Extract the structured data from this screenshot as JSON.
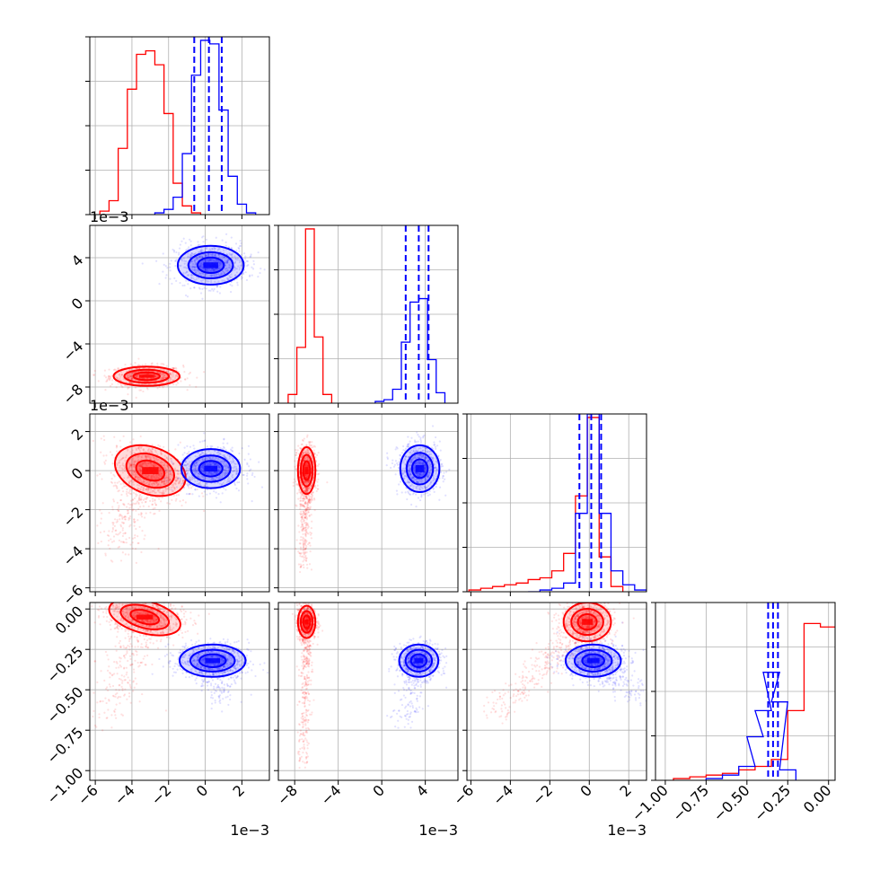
{
  "chart_data": {
    "type": "corner",
    "offset_label": "1e−3",
    "colors": {
      "red": "#ff0000",
      "blue": "#0000ff"
    },
    "grid": true,
    "variables": [
      {
        "range": [
          -6.3,
          3.5
        ],
        "ticks": [
          -6,
          -4,
          -2,
          0,
          2
        ],
        "tick_labels": [
          "−6",
          "−4",
          "−2",
          "0",
          "2"
        ],
        "scale": "1e-3"
      },
      {
        "range": [
          -9.5,
          7.0
        ],
        "ticks": [
          -8,
          -4,
          0,
          4
        ],
        "tick_labels": [
          "−8",
          "−4",
          "0",
          "4"
        ],
        "scale": "1e-3"
      },
      {
        "range": [
          -6.2,
          2.9
        ],
        "ticks": [
          -6,
          -4,
          -2,
          0,
          2
        ],
        "tick_labels": [
          "−6",
          "−4",
          "−2",
          "0",
          "2"
        ],
        "scale": "1e-3"
      },
      {
        "range": [
          -1.06,
          0.04
        ],
        "ticks": [
          -1.0,
          -0.75,
          -0.5,
          -0.25,
          0.0
        ],
        "tick_labels": [
          "−1.00",
          "−0.75",
          "−0.50",
          "−0.25",
          "0.00"
        ],
        "scale": "1"
      }
    ],
    "histograms": [
      {
        "quantiles_blue": [
          -0.6,
          0.2,
          0.9
        ],
        "red": {
          "x": [
            -5.5,
            -5.0,
            -4.5,
            -4.0,
            -3.5,
            -3.0,
            -2.5,
            -2.0,
            -1.5,
            -1.0,
            -0.5
          ],
          "y": [
            0.02,
            0.08,
            0.38,
            0.72,
            0.92,
            0.94,
            0.86,
            0.58,
            0.18,
            0.05,
            0.01
          ]
        },
        "blue": {
          "x": [
            -2.5,
            -2.0,
            -1.5,
            -1.0,
            -0.5,
            0.0,
            0.5,
            1.0,
            1.5,
            2.0,
            2.5
          ],
          "y": [
            0.01,
            0.03,
            0.1,
            0.35,
            0.8,
            1.0,
            0.98,
            0.6,
            0.22,
            0.06,
            0.01
          ]
        }
      },
      {
        "quantiles_blue": [
          2.2,
          3.4,
          4.3
        ],
        "red": {
          "x": [
            -8.2,
            -7.4,
            -6.6,
            -5.8,
            -5.0
          ],
          "y": [
            0.05,
            0.32,
            1.0,
            0.38,
            0.05
          ]
        },
        "blue": {
          "x": [
            -0.2,
            0.6,
            1.4,
            2.2,
            3.0,
            3.8,
            4.6,
            5.4
          ],
          "y": [
            0.01,
            0.02,
            0.08,
            0.35,
            0.58,
            0.6,
            0.25,
            0.06
          ]
        }
      },
      {
        "quantiles_blue": [
          -0.5,
          0.1,
          0.6
        ],
        "red": {
          "x": [
            -5.8,
            -5.2,
            -4.6,
            -4.0,
            -3.4,
            -2.8,
            -2.2,
            -1.6,
            -1.0,
            -0.4,
            0.2,
            0.8,
            1.4
          ],
          "y": [
            0.01,
            0.02,
            0.03,
            0.04,
            0.05,
            0.07,
            0.08,
            0.12,
            0.22,
            0.55,
            1.0,
            0.2,
            0.03
          ]
        },
        "blue": {
          "x": [
            -2.8,
            -2.2,
            -1.6,
            -1.0,
            -0.4,
            0.2,
            0.8,
            1.4,
            2.0,
            2.6
          ],
          "y": [
            0.0,
            0.01,
            0.02,
            0.05,
            0.45,
            1.02,
            0.45,
            0.12,
            0.04,
            0.01
          ]
        }
      },
      {
        "quantiles_blue": [
          -0.37,
          -0.34,
          -0.31
        ],
        "red": {
          "x": [
            -0.9,
            -0.8,
            -0.7,
            -0.6,
            -0.5,
            -0.4,
            -0.3,
            -0.2,
            -0.1,
            0.0
          ],
          "y": [
            0.01,
            0.02,
            0.03,
            0.04,
            0.06,
            0.08,
            0.12,
            0.4,
            0.9,
            0.88
          ]
        },
        "blue": {
          "x": [
            -0.7,
            -0.6,
            -0.5,
            -0.45,
            -0.4,
            -0.35,
            -0.3,
            -0.25
          ],
          "y": [
            0.01,
            0.03,
            0.08,
            0.25,
            0.4,
            0.62,
            0.45,
            0.06
          ]
        }
      }
    ],
    "clusters": [
      {
        "pair": [
          0,
          1
        ],
        "red": {
          "mean": [
            -3.2,
            -7.0
          ],
          "sd": [
            0.9,
            0.45
          ],
          "rot": 0
        },
        "blue": {
          "mean": [
            0.3,
            3.3
          ],
          "sd": [
            0.9,
            0.9
          ],
          "rot": 0
        }
      },
      {
        "pair": [
          0,
          2
        ],
        "red": {
          "mean": [
            -3.0,
            0.0
          ],
          "sd": [
            1.0,
            0.6
          ],
          "rot": -20,
          "tail": {
            "to": [
              -5.0,
              -4.0
            ],
            "n": 380
          }
        },
        "blue": {
          "mean": [
            0.3,
            0.1
          ],
          "sd": [
            0.8,
            0.5
          ],
          "rot": 0
        }
      },
      {
        "pair": [
          0,
          3
        ],
        "red": {
          "mean": [
            -3.3,
            -0.05
          ],
          "sd": [
            1.0,
            0.05
          ],
          "rot": -15,
          "tail": {
            "to": [
              -5.5,
              -0.7
            ],
            "n": 300
          }
        },
        "blue": {
          "mean": [
            0.4,
            -0.32
          ],
          "sd": [
            0.9,
            0.05
          ],
          "rot": 0,
          "tail": {
            "to": [
              1.0,
              -0.55
            ],
            "n": 200
          }
        }
      },
      {
        "pair": [
          1,
          2
        ],
        "red": {
          "mean": [
            -6.9,
            0.0
          ],
          "sd": [
            0.4,
            0.6
          ],
          "rot": 0,
          "tail": {
            "to": [
              -7.2,
              -5.0
            ],
            "n": 420
          }
        },
        "blue": {
          "mean": [
            3.5,
            0.1
          ],
          "sd": [
            0.9,
            0.6
          ],
          "rot": 0
        }
      },
      {
        "pair": [
          1,
          3
        ],
        "red": {
          "mean": [
            -6.9,
            -0.08
          ],
          "sd": [
            0.4,
            0.05
          ],
          "rot": 0,
          "tail": {
            "to": [
              -7.2,
              -0.95
            ],
            "n": 400
          }
        },
        "blue": {
          "mean": [
            3.4,
            -0.32
          ],
          "sd": [
            0.9,
            0.05
          ],
          "rot": 0,
          "tail": {
            "to": [
              2.2,
              -0.7
            ],
            "n": 200
          }
        }
      },
      {
        "pair": [
          2,
          3
        ],
        "red": {
          "mean": [
            -0.1,
            -0.08
          ],
          "sd": [
            0.6,
            0.06
          ],
          "rot": 0,
          "tail": {
            "to": [
              -4.8,
              -0.65
            ],
            "n": 380
          }
        },
        "blue": {
          "mean": [
            0.2,
            -0.32
          ],
          "sd": [
            0.7,
            0.05
          ],
          "rot": 0,
          "tail": {
            "to": [
              2.4,
              -0.55
            ],
            "n": 250
          }
        }
      }
    ]
  }
}
